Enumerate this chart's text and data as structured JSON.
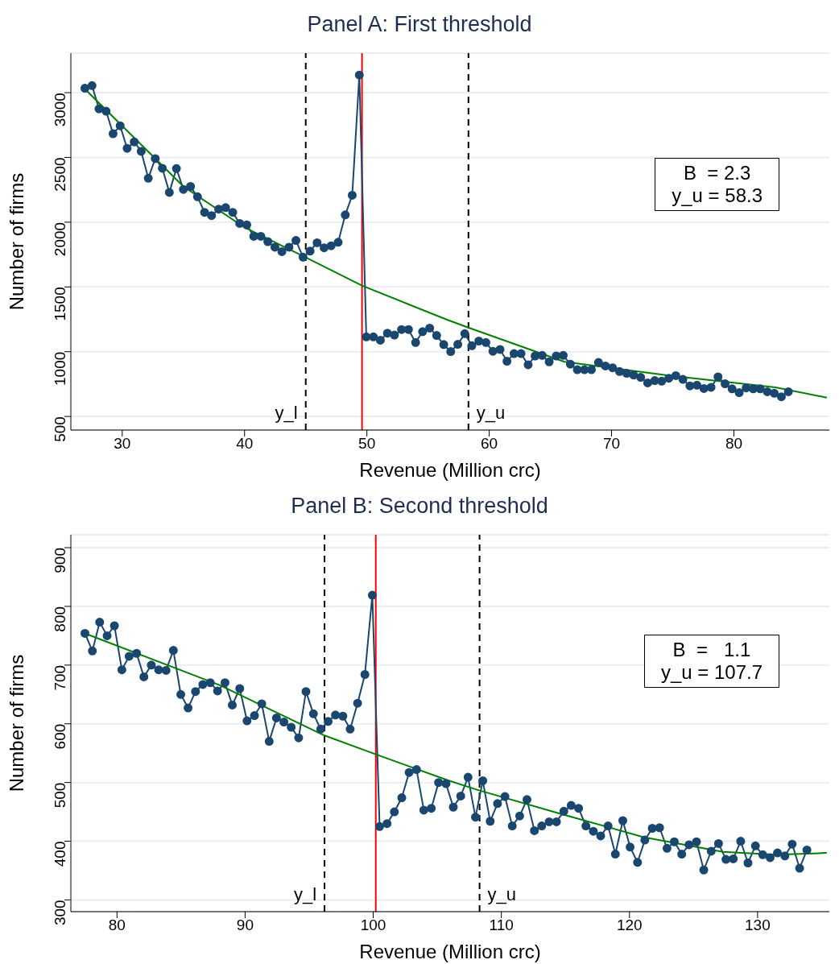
{
  "chart_data": [
    {
      "type": "line",
      "title": "Panel A: First threshold",
      "xlabel": "Revenue (Million crc)",
      "ylabel": "Number of firms",
      "xlim": [
        25.8,
        87.8
      ],
      "xticks": [
        30,
        40,
        50,
        60,
        70,
        80
      ],
      "ylim": [
        395,
        3305
      ],
      "yticks": [
        500,
        1000,
        1500,
        2000,
        2500,
        3000
      ],
      "grid": "y",
      "series": [
        {
          "color": "#1a476f",
          "marker": "circle",
          "line_style": "solid",
          "x": [
            26.95,
            27.53,
            28.1,
            28.68,
            29.25,
            29.83,
            30.4,
            30.98,
            31.55,
            32.13,
            32.7,
            33.28,
            33.85,
            34.43,
            35.0,
            35.58,
            36.15,
            36.73,
            37.3,
            37.88,
            38.45,
            39.03,
            39.6,
            40.18,
            40.75,
            41.33,
            41.9,
            42.48,
            43.05,
            43.63,
            44.2,
            44.78,
            45.35,
            45.93,
            46.5,
            47.08,
            47.65,
            48.23,
            48.8,
            49.38,
            49.95,
            50.53,
            51.1,
            51.68,
            52.25,
            52.83,
            53.4,
            53.98,
            54.55,
            55.13,
            55.7,
            56.28,
            56.85,
            57.43,
            58.0,
            58.58,
            59.15,
            59.73,
            60.3,
            60.88,
            61.45,
            62.03,
            62.6,
            63.18,
            63.75,
            64.33,
            64.9,
            65.48,
            66.05,
            66.63,
            67.2,
            67.78,
            68.35,
            68.93,
            69.5,
            70.08,
            70.65,
            71.23,
            71.8,
            72.38,
            72.95,
            73.53,
            74.1,
            74.68,
            75.25,
            75.83,
            76.4,
            76.98,
            77.55,
            78.13,
            78.7,
            79.28,
            79.85,
            80.43,
            81.0,
            81.58,
            82.15,
            82.73,
            83.3,
            83.88,
            84.45
          ],
          "values": [
            3034,
            3054,
            2875,
            2857,
            2683,
            2744,
            2570,
            2620,
            2547,
            2339,
            2491,
            2416,
            2230,
            2414,
            2253,
            2276,
            2196,
            2076,
            2051,
            2101,
            2112,
            2076,
            1990,
            1979,
            1891,
            1891,
            1850,
            1807,
            1773,
            1807,
            1859,
            1730,
            1777,
            1841,
            1802,
            1818,
            1845,
            2056,
            2208,
            3136,
            1114,
            1114,
            1089,
            1143,
            1128,
            1171,
            1171,
            1071,
            1155,
            1182,
            1125,
            1055,
            1001,
            1057,
            1139,
            1046,
            1082,
            1071,
            1003,
            1017,
            926,
            985,
            985,
            899,
            967,
            971,
            922,
            967,
            971,
            904,
            861,
            861,
            861,
            917,
            890,
            876,
            847,
            833,
            820,
            802,
            759,
            777,
            772,
            795,
            815,
            786,
            736,
            741,
            716,
            725,
            806,
            752,
            713,
            684,
            720,
            713,
            713,
            691,
            679,
            652,
            691
          ]
        },
        {
          "color": "#008000",
          "marker": "none",
          "line_style": "solid",
          "x": [
            26.93,
            35,
            40,
            45,
            49.6,
            56.6,
            58.2,
            66.15,
            74.8,
            79.1,
            83.4,
            87.6
          ],
          "values": [
            3030,
            2276,
            1959,
            1728,
            1510,
            1245,
            1189,
            922,
            815,
            770,
            725,
            645
          ]
        }
      ],
      "ref_lines": [
        {
          "axis": "x",
          "value": 45,
          "label": "y_l",
          "color": "#000000",
          "line_style": "dashed"
        },
        {
          "axis": "x",
          "value": 58.3,
          "label": "y_u",
          "color": "#000000",
          "line_style": "dashed"
        },
        {
          "axis": "x",
          "value": 49.6,
          "color": "#ff0000",
          "line_style": "solid"
        }
      ],
      "annotations": [
        "B  = 2.3",
        "y_u = 58.3"
      ]
    },
    {
      "type": "line",
      "title": "Panel B: Second threshold",
      "xlabel": "Revenue (Million crc)",
      "ylabel": "Number of firms",
      "xlim": [
        76.4,
        135.6
      ],
      "xticks": [
        80,
        90,
        100,
        110,
        120,
        130
      ],
      "ylim": [
        280,
        922
      ],
      "yticks": [
        300,
        400,
        500,
        600,
        700,
        800,
        900
      ],
      "grid": "y",
      "series": [
        {
          "color": "#1a476f",
          "marker": "circle",
          "line_style": "solid",
          "x": [
            77.5,
            78.08,
            78.65,
            79.23,
            79.8,
            80.38,
            80.95,
            81.53,
            82.1,
            82.68,
            83.25,
            83.83,
            84.4,
            84.98,
            85.55,
            86.13,
            86.7,
            87.28,
            87.85,
            88.43,
            89.0,
            89.58,
            90.15,
            90.73,
            91.3,
            91.88,
            92.45,
            93.03,
            93.6,
            94.18,
            94.75,
            95.33,
            95.9,
            96.48,
            97.05,
            97.63,
            98.2,
            98.78,
            99.35,
            99.93,
            100.5,
            101.08,
            101.65,
            102.23,
            102.8,
            103.38,
            103.95,
            104.53,
            105.1,
            105.68,
            106.25,
            106.83,
            107.4,
            107.98,
            108.55,
            109.13,
            109.7,
            110.28,
            110.85,
            111.43,
            112.0,
            112.58,
            113.15,
            113.73,
            114.3,
            114.88,
            115.45,
            116.03,
            116.6,
            117.18,
            117.75,
            118.33,
            118.9,
            119.48,
            120.05,
            120.63,
            121.2,
            121.78,
            122.35,
            122.93,
            123.5,
            124.08,
            124.65,
            125.23,
            125.8,
            126.38,
            126.95,
            127.53,
            128.1,
            128.68,
            129.25,
            129.83,
            130.4,
            130.98,
            131.55,
            132.13,
            132.7,
            133.28,
            133.85
          ],
          "values": [
            754,
            724,
            773,
            750,
            767,
            692,
            715,
            720,
            680,
            700,
            692,
            691,
            725,
            650,
            627,
            655,
            667,
            670,
            656,
            670,
            632,
            660,
            605,
            614,
            634,
            570,
            610,
            603,
            594,
            576,
            655,
            617,
            591,
            604,
            615,
            613,
            591,
            635,
            684,
            819,
            425,
            430,
            450,
            474,
            517,
            522,
            453,
            456,
            500,
            498,
            458,
            477,
            509,
            441,
            503,
            434,
            464,
            476,
            426,
            443,
            471,
            418,
            426,
            433,
            433,
            451,
            461,
            456,
            426,
            417,
            409,
            426,
            378,
            435,
            390,
            364,
            402,
            422,
            423,
            388,
            399,
            378,
            394,
            399,
            351,
            383,
            396,
            369,
            370,
            400,
            363,
            392,
            377,
            372,
            380,
            375,
            395,
            354,
            385
          ]
        },
        {
          "color": "#008000",
          "marker": "none",
          "line_style": "solid",
          "x": [
            77.5,
            88,
            96.2,
            100.2,
            105.8,
            108.2,
            114.9,
            121.1,
            127.3,
            131.4,
            135.4
          ],
          "values": [
            754,
            666,
            580,
            548,
            504,
            487,
            445,
            407,
            382,
            377,
            380
          ]
        }
      ],
      "ref_lines": [
        {
          "axis": "x",
          "value": 96.2,
          "label": "y_l",
          "color": "#000000",
          "line_style": "dashed"
        },
        {
          "axis": "x",
          "value": 108.3,
          "label": "y_u",
          "color": "#000000",
          "line_style": "dashed"
        },
        {
          "axis": "x",
          "value": 100.2,
          "color": "#ff0000",
          "line_style": "solid"
        }
      ],
      "annotations": [
        "B  =   1.1",
        "y_u = 107.7"
      ]
    }
  ]
}
